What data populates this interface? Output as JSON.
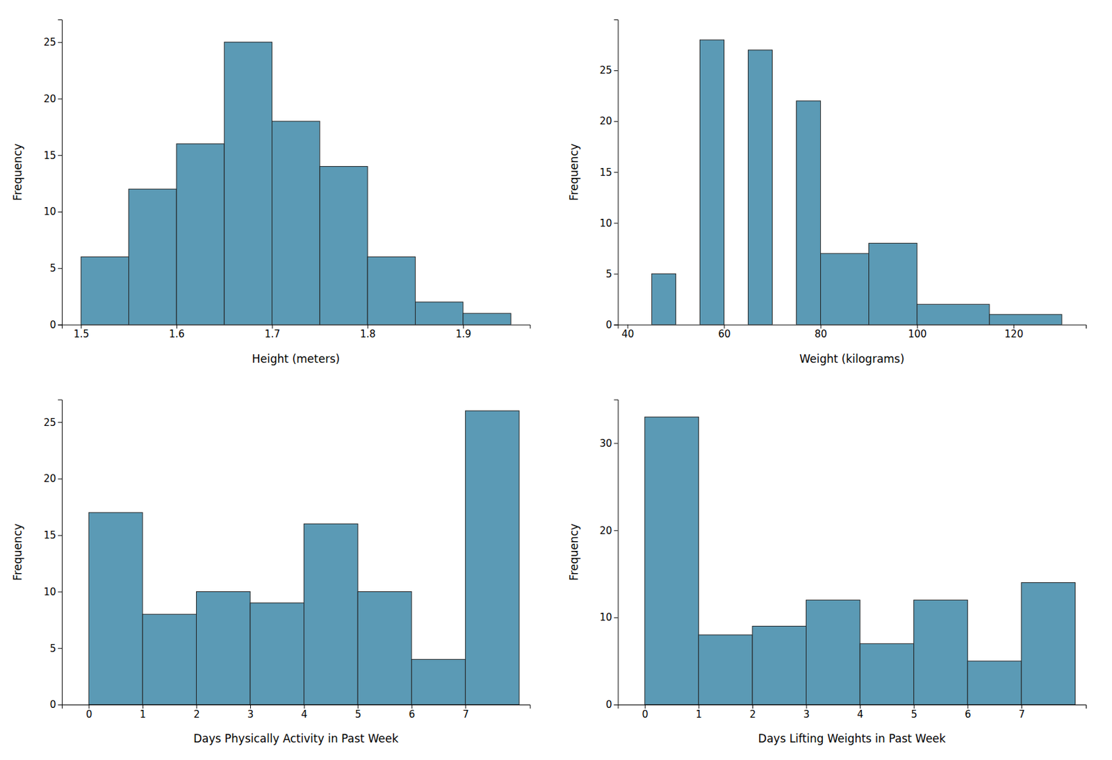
{
  "chart_data": [
    {
      "type": "histogram",
      "xlabel": "Height (meters)",
      "ylabel": "Frequency",
      "bins": [
        1.5,
        1.55,
        1.6,
        1.65,
        1.7,
        1.75,
        1.8,
        1.85,
        1.9,
        1.95
      ],
      "values": [
        6,
        12,
        16,
        25,
        18,
        14,
        6,
        2,
        1
      ],
      "color": "#5b9ab5",
      "xlim": [
        1.48,
        1.97
      ],
      "xticks": [
        1.5,
        1.6,
        1.7,
        1.8,
        1.9
      ],
      "ylim": [
        0,
        27
      ],
      "yticks": [
        0,
        5,
        10,
        15,
        20,
        25
      ],
      "grid": false
    },
    {
      "type": "histogram",
      "xlabel": "Weight (kilograms)",
      "ylabel": "Frequency",
      "bins": [
        45,
        50,
        55,
        60,
        65,
        70,
        75,
        80,
        90,
        100,
        115,
        130
      ],
      "values": [
        5,
        0,
        28,
        0,
        27,
        0,
        22,
        7,
        8,
        2,
        1
      ],
      "color": "#5b9ab5",
      "xlim": [
        38,
        135
      ],
      "xticks": [
        40,
        60,
        80,
        100,
        120
      ],
      "ylim": [
        0,
        30
      ],
      "yticks": [
        0,
        5,
        10,
        15,
        20,
        25
      ],
      "grid": false
    },
    {
      "type": "histogram",
      "xlabel": "Days Physically Activity in Past Week",
      "ylabel": "Frequency",
      "bins": [
        0,
        1,
        2,
        3,
        4,
        5,
        6,
        7,
        8
      ],
      "values": [
        17,
        8,
        10,
        9,
        16,
        10,
        4,
        26
      ],
      "color": "#5b9ab5",
      "xlim": [
        -0.5,
        8.2
      ],
      "xticks": [
        0,
        1,
        2,
        3,
        4,
        5,
        6,
        7
      ],
      "ylim": [
        0,
        27
      ],
      "yticks": [
        0,
        5,
        10,
        15,
        20,
        25
      ],
      "grid": false
    },
    {
      "type": "histogram",
      "xlabel": "Days Lifting Weights in Past Week",
      "ylabel": "Frequency",
      "bins": [
        0,
        1,
        2,
        3,
        4,
        5,
        6,
        7,
        8
      ],
      "values": [
        33,
        8,
        9,
        12,
        7,
        12,
        5,
        14
      ],
      "color": "#5b9ab5",
      "xlim": [
        -0.5,
        8.2
      ],
      "xticks": [
        0,
        1,
        2,
        3,
        4,
        5,
        6,
        7
      ],
      "ylim": [
        0,
        35
      ],
      "yticks": [
        0,
        10,
        20,
        30
      ],
      "grid": false
    }
  ]
}
